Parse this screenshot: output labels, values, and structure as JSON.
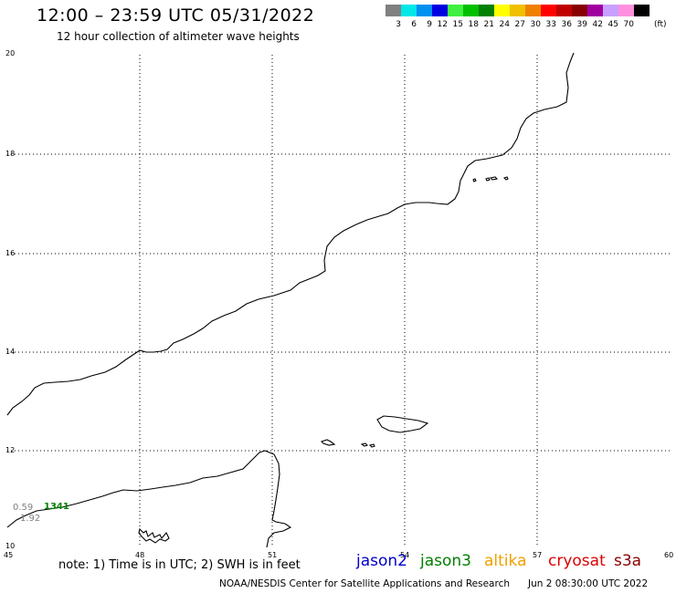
{
  "header": {
    "title": "12:00 – 23:59 UTC 05/31/2022",
    "subtitle": "12 hour collection of altimeter wave heights"
  },
  "color_scale": {
    "labels": [
      "3",
      "6",
      "9",
      "12",
      "15",
      "18",
      "21",
      "24",
      "27",
      "30",
      "33",
      "36",
      "39",
      "42",
      "45",
      "70"
    ],
    "unit": "(ft)",
    "colors": [
      "#808080",
      "#00e8e8",
      "#0090f0",
      "#0000e0",
      "#40f040",
      "#00c000",
      "#008000",
      "#ffff00",
      "#f0c000",
      "#f08000",
      "#ff0000",
      "#c00000",
      "#880000",
      "#a000a0",
      "#c8a0ff",
      "#ff90e0",
      "#000000"
    ]
  },
  "map": {
    "lon_labels": [
      "45",
      "48",
      "51",
      "54",
      "57",
      "60"
    ],
    "lat_labels": [
      "20",
      "18",
      "16",
      "14",
      "12",
      "10"
    ],
    "annotations": [
      {
        "text": "0.59",
        "color": "#808080"
      },
      {
        "text": "1341",
        "color": "#008000"
      },
      {
        "text": "1.92",
        "color": "#808080"
      }
    ]
  },
  "footer": {
    "note": "note:  1) Time is in UTC;  2) SWH is in feet",
    "satellites": [
      {
        "name": "jason2",
        "color": "#0000cc"
      },
      {
        "name": "jason3",
        "color": "#008000"
      },
      {
        "name": "altika",
        "color": "#f0a000"
      },
      {
        "name": "cryosat",
        "color": "#dd0000"
      },
      {
        "name": "s3a",
        "color": "#880000"
      }
    ],
    "credit": "NOAA/NESDIS Center for Satellite Applications and Research",
    "timestamp": "Jun  2 08:30:00 UTC 2022"
  }
}
